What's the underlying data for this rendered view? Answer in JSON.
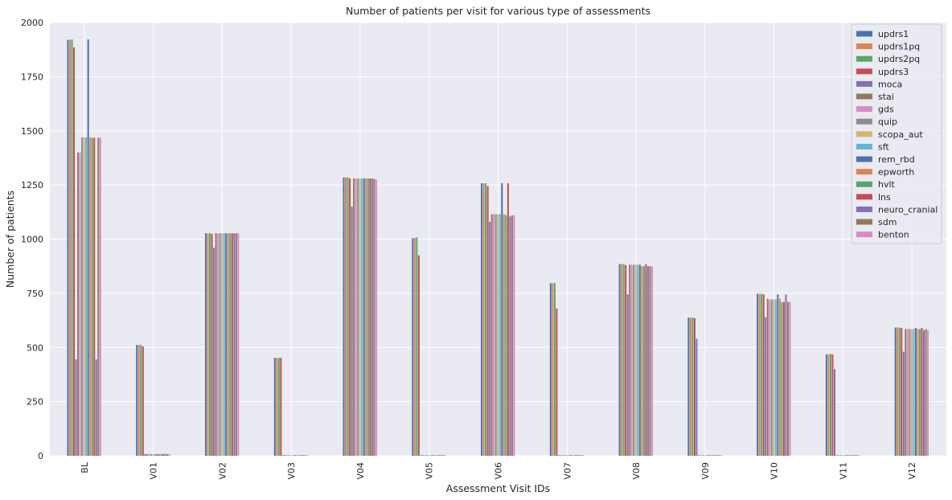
{
  "chart_data": {
    "type": "bar",
    "title": "Number of patients per visit for various type of assessments",
    "xlabel": "Assessment Visit IDs",
    "ylabel": "Number of patients",
    "ylim": [
      0,
      2000
    ],
    "yticks": [
      0,
      250,
      500,
      750,
      1000,
      1250,
      1500,
      1750,
      2000
    ],
    "grid": true,
    "legend_position": "top-right",
    "categories": [
      "BL",
      "V01",
      "V02",
      "V03",
      "V04",
      "V05",
      "V06",
      "V07",
      "V08",
      "V09",
      "V10",
      "V11",
      "V12"
    ],
    "series": [
      {
        "name": "updrs1",
        "color": "#4c72b0",
        "values": [
          1920,
          512,
          1027,
          452,
          1285,
          1005,
          1258,
          797,
          885,
          638,
          748,
          468,
          592
        ]
      },
      {
        "name": "updrs1pq",
        "color": "#dd8452",
        "values": [
          1920,
          512,
          1027,
          452,
          1285,
          1005,
          1258,
          797,
          885,
          638,
          748,
          468,
          592
        ]
      },
      {
        "name": "updrs2pq",
        "color": "#55a868",
        "values": [
          1922,
          512,
          1027,
          452,
          1285,
          1008,
          1258,
          797,
          885,
          638,
          748,
          470,
          592
        ]
      },
      {
        "name": "updrs3",
        "color": "#c44e52",
        "values": [
          1885,
          505,
          1025,
          452,
          1280,
          925,
          1245,
          680,
          880,
          635,
          745,
          468,
          590
        ]
      },
      {
        "name": "moca",
        "color": "#8172b3",
        "values": [
          445,
          8,
          960,
          3,
          1150,
          3,
          1080,
          3,
          745,
          540,
          640,
          400,
          480
        ]
      },
      {
        "name": "stai",
        "color": "#937860",
        "values": [
          1400,
          8,
          1027,
          3,
          1280,
          3,
          1115,
          3,
          882,
          3,
          725,
          3,
          585
        ]
      },
      {
        "name": "gds",
        "color": "#da8bc3",
        "values": [
          1400,
          8,
          1027,
          3,
          1280,
          3,
          1115,
          3,
          882,
          3,
          720,
          3,
          585
        ]
      },
      {
        "name": "quip",
        "color": "#8c8c8c",
        "values": [
          1470,
          8,
          1027,
          3,
          1280,
          3,
          1115,
          3,
          882,
          3,
          722,
          3,
          585
        ]
      },
      {
        "name": "scopa_aut",
        "color": "#ccb974",
        "values": [
          1470,
          8,
          1027,
          3,
          1280,
          3,
          1115,
          3,
          882,
          3,
          722,
          3,
          585
        ]
      },
      {
        "name": "sft",
        "color": "#64b5cd",
        "values": [
          1470,
          8,
          1027,
          3,
          1280,
          3,
          1115,
          3,
          882,
          3,
          722,
          3,
          585
        ]
      },
      {
        "name": "rem_rbd",
        "color": "#4c72b0",
        "values": [
          1922,
          8,
          1027,
          3,
          1280,
          3,
          1258,
          3,
          882,
          3,
          745,
          3,
          590
        ]
      },
      {
        "name": "epworth",
        "color": "#dd8452",
        "values": [
          1470,
          8,
          1027,
          3,
          1280,
          3,
          1115,
          3,
          875,
          3,
          725,
          3,
          585
        ]
      },
      {
        "name": "hvlt",
        "color": "#55a868",
        "values": [
          1468,
          8,
          1027,
          3,
          1280,
          3,
          1110,
          3,
          875,
          3,
          710,
          3,
          585
        ]
      },
      {
        "name": "lns",
        "color": "#c44e52",
        "values": [
          1468,
          8,
          1027,
          3,
          1280,
          3,
          1258,
          3,
          885,
          3,
          710,
          3,
          590
        ]
      },
      {
        "name": "neuro_cranial",
        "color": "#8172b3",
        "values": [
          445,
          8,
          1027,
          3,
          1280,
          3,
          1105,
          3,
          875,
          3,
          745,
          3,
          580
        ]
      },
      {
        "name": "sdm",
        "color": "#937860",
        "values": [
          1468,
          8,
          1027,
          3,
          1278,
          3,
          1110,
          3,
          875,
          3,
          710,
          3,
          585
        ]
      },
      {
        "name": "benton",
        "color": "#da8bc3",
        "values": [
          1468,
          8,
          1027,
          3,
          1275,
          3,
          1110,
          3,
          875,
          3,
          710,
          3,
          580
        ]
      }
    ]
  }
}
